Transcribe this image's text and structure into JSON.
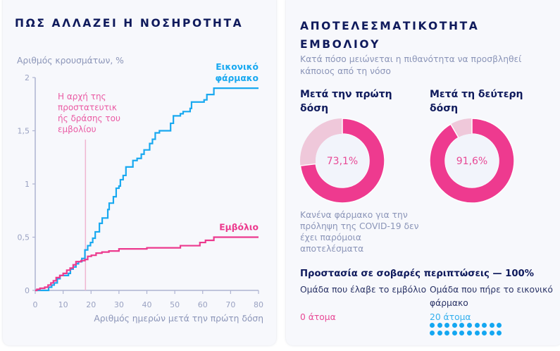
{
  "left_card": {
    "title": "ΠΩΣ ΑΛΛΑΖΕΙ Η ΝΟΣΗΡΟΤΗΤΑ"
  },
  "right_card": {
    "title": "ΑΠΟΤΕΛΕΣΜΑΤΙΚΟΤΗΤΑ ΕΜΒΟΛΙΟΥ",
    "subtitle": "Κατά πόσο μειώνεται η πιθανότητα να προσβληθεί κάποιος από τη νόσο",
    "dose1": {
      "title": "Μετά την πρώτη δόση",
      "efficacy_percent": 73.1,
      "label": "73,1%",
      "note": "Κανένα φάρμακο για την πρόληψη της COVID-19 δεν έχει παρόμοια αποτελέσματα"
    },
    "dose2": {
      "title": "Μετά τη δεύτερη δόση",
      "efficacy_percent": 91.6,
      "label": "91,6%"
    },
    "severe": {
      "title": "Προστασία σε σοβαρές περιπτώσεις — 100%",
      "vaccine_group_label": "Ομάδα που έλαβε το εμβόλιο",
      "vaccine_group_count": "0 άτομα",
      "vaccine_group_n": 0,
      "placebo_group_label": "Ομάδα που πήρε το εικονικό φάρμακο",
      "placebo_group_count": "20 άτομα",
      "placebo_group_n": 20
    },
    "colors": {
      "efficacy": "#ee3a8f",
      "remainder": "#efc8da",
      "placebo_dots": "#14a7f1"
    }
  },
  "chart_data": {
    "type": "line",
    "title": "ΠΩΣ ΑΛΛΑΖΕΙ Η ΝΟΣΗΡΟΤΗΤΑ",
    "xlabel": "Αριθμός ημερών μετά την πρώτη δόση",
    "ylabel": "Αριθμός κρουσμάτων, %",
    "xlim": [
      0,
      80
    ],
    "ylim": [
      0,
      2
    ],
    "xticks": [
      0,
      10,
      20,
      30,
      40,
      50,
      60,
      70,
      80
    ],
    "xtick_labels": [
      "0",
      "10",
      "20",
      "30",
      "40",
      "50",
      "60",
      "70",
      "80"
    ],
    "yticks": [
      0,
      0.5,
      1,
      1.5,
      2
    ],
    "ytick_labels": [
      "0",
      "0,5",
      "1",
      "1,5",
      "2"
    ],
    "grid": false,
    "step": true,
    "annotation": {
      "x": 18,
      "text_lines": [
        "Η αρχή της",
        "προστατευτικ",
        "ής δράσης του",
        "εμβολίου"
      ]
    },
    "series": [
      {
        "name": "Εικονικό φάρμακο",
        "label_lines": [
          "Εικονικό",
          "φάρμακο"
        ],
        "color": "#19a9f0",
        "x": [
          0,
          4.8,
          5.9,
          6.8,
          7.9,
          8.9,
          11.9,
          12.6,
          13.6,
          14.6,
          15.5,
          16.7,
          17.8,
          18.8,
          19.8,
          20.6,
          21.5,
          23,
          24,
          26,
          26.5,
          28,
          29,
          30,
          30.5,
          31.5,
          32.5,
          35,
          36.5,
          38,
          39,
          41,
          42,
          43,
          44.5,
          48.5,
          49.5,
          52,
          53,
          55.5,
          56,
          60.5,
          61.5,
          64,
          80
        ],
        "y": [
          0,
          0.03,
          0.05,
          0.07,
          0.11,
          0.14,
          0.16,
          0.2,
          0.22,
          0.25,
          0.27,
          0.3,
          0.38,
          0.42,
          0.45,
          0.49,
          0.55,
          0.63,
          0.68,
          0.76,
          0.82,
          0.88,
          0.96,
          0.98,
          1.04,
          1.08,
          1.16,
          1.22,
          1.24,
          1.28,
          1.32,
          1.38,
          1.42,
          1.48,
          1.5,
          1.57,
          1.64,
          1.66,
          1.68,
          1.71,
          1.77,
          1.79,
          1.84,
          1.9,
          1.9
        ]
      },
      {
        "name": "Εμβόλιο",
        "label_lines": [
          "Εμβόλιο"
        ],
        "color": "#ec3a8e",
        "x": [
          0,
          0.6,
          1.7,
          3.4,
          4.6,
          5.6,
          6.5,
          7.5,
          8.8,
          10,
          11.3,
          12.5,
          13.6,
          14.6,
          16.4,
          17.8,
          18.8,
          20.1,
          21.8,
          23.9,
          26.4,
          30,
          40,
          52,
          59,
          61,
          64,
          80
        ],
        "y": [
          0,
          0.01,
          0.02,
          0.03,
          0.05,
          0.07,
          0.09,
          0.12,
          0.14,
          0.16,
          0.19,
          0.21,
          0.24,
          0.27,
          0.28,
          0.29,
          0.32,
          0.33,
          0.35,
          0.36,
          0.37,
          0.39,
          0.4,
          0.42,
          0.45,
          0.47,
          0.5,
          0.5
        ]
      }
    ]
  }
}
